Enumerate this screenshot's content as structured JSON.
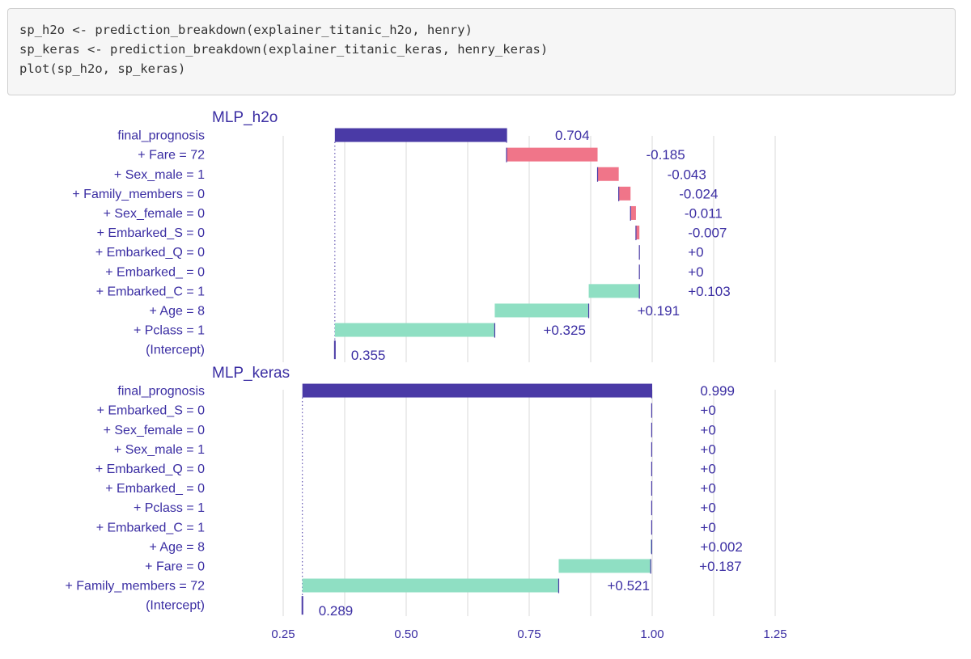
{
  "code": {
    "lines": [
      "sp_h2o <- prediction_breakdown(explainer_titanic_h2o, henry)",
      "sp_keras <- prediction_breakdown(explainer_titanic_keras, henry_keras)",
      "plot(sp_h2o, sp_keras)"
    ]
  },
  "colors": {
    "text": "#3b2ea3",
    "total_bar": "#4a3aa6",
    "negative": "#f07589",
    "positive": "#8fdfc3",
    "grid": "#e6e6e6"
  },
  "chart_data": {
    "type": "bar",
    "subtype": "waterfall",
    "grid": true,
    "legend": "none",
    "xlim": [
      0.15,
      1.35
    ],
    "xticks": [
      0.25,
      0.5,
      0.75,
      1.0,
      1.25
    ],
    "xtick_labels": [
      "0.25",
      "0.50",
      "0.75",
      "1.00",
      "1.25"
    ],
    "panels": [
      {
        "title": "MLP_h2o",
        "intercept": 0.355,
        "rows": [
          {
            "variable": "final_prognosis",
            "contribution": 0.704,
            "label": "0.704",
            "kind": "total"
          },
          {
            "variable": "+ Fare = 72",
            "contribution": -0.185,
            "label": "-0.185",
            "kind": "negative"
          },
          {
            "variable": "+ Sex_male = 1",
            "contribution": -0.043,
            "label": "-0.043",
            "kind": "negative"
          },
          {
            "variable": "+ Family_members = 0",
            "contribution": -0.024,
            "label": "-0.024",
            "kind": "negative"
          },
          {
            "variable": "+ Sex_female = 0",
            "contribution": -0.011,
            "label": "-0.011",
            "kind": "negative"
          },
          {
            "variable": "+ Embarked_S = 0",
            "contribution": -0.007,
            "label": "-0.007",
            "kind": "negative"
          },
          {
            "variable": "+ Embarked_Q = 0",
            "contribution": 0.0,
            "label": "+0",
            "kind": "positive"
          },
          {
            "variable": "+ Embarked_ = 0",
            "contribution": 0.0,
            "label": "+0",
            "kind": "positive"
          },
          {
            "variable": "+ Embarked_C = 1",
            "contribution": 0.103,
            "label": "+0.103",
            "kind": "positive"
          },
          {
            "variable": "+ Age = 8",
            "contribution": 0.191,
            "label": "+0.191",
            "kind": "positive"
          },
          {
            "variable": "+ Pclass = 1",
            "contribution": 0.325,
            "label": "+0.325",
            "kind": "positive"
          },
          {
            "variable": "(Intercept)",
            "contribution": 0.355,
            "label": "0.355",
            "kind": "intercept"
          }
        ]
      },
      {
        "title": "MLP_keras",
        "intercept": 0.289,
        "rows": [
          {
            "variable": "final_prognosis",
            "contribution": 0.999,
            "label": "0.999",
            "kind": "total"
          },
          {
            "variable": "+ Embarked_S = 0",
            "contribution": 0.0,
            "label": "+0",
            "kind": "positive"
          },
          {
            "variable": "+ Sex_female = 0",
            "contribution": 0.0,
            "label": "+0",
            "kind": "positive"
          },
          {
            "variable": "+ Sex_male = 1",
            "contribution": 0.0,
            "label": "+0",
            "kind": "positive"
          },
          {
            "variable": "+ Embarked_Q = 0",
            "contribution": 0.0,
            "label": "+0",
            "kind": "positive"
          },
          {
            "variable": "+ Embarked_ = 0",
            "contribution": 0.0,
            "label": "+0",
            "kind": "positive"
          },
          {
            "variable": "+ Pclass = 1",
            "contribution": 0.0,
            "label": "+0",
            "kind": "positive"
          },
          {
            "variable": "+ Embarked_C = 1",
            "contribution": 0.0,
            "label": "+0",
            "kind": "positive"
          },
          {
            "variable": "+ Age = 8",
            "contribution": 0.002,
            "label": "+0.002",
            "kind": "positive"
          },
          {
            "variable": "+ Fare = 0",
            "contribution": 0.187,
            "label": "+0.187",
            "kind": "positive"
          },
          {
            "variable": "+ Family_members = 72",
            "contribution": 0.521,
            "label": "+0.521",
            "kind": "positive"
          },
          {
            "variable": "(Intercept)",
            "contribution": 0.289,
            "label": "0.289",
            "kind": "intercept"
          }
        ]
      }
    ]
  }
}
